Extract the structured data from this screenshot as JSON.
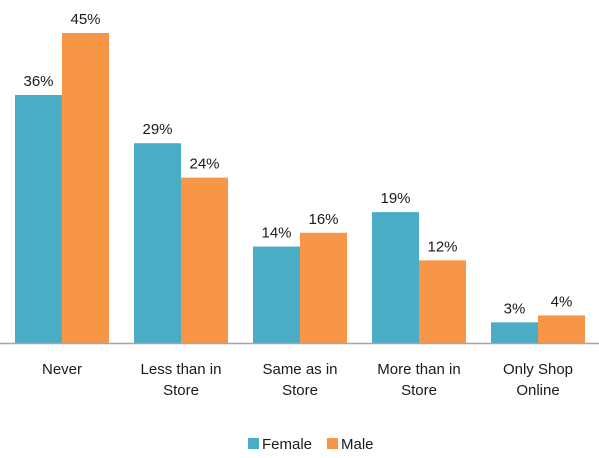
{
  "chart_data": {
    "type": "bar",
    "categories": [
      [
        "Never"
      ],
      [
        "Less than in",
        "Store"
      ],
      [
        "Same as in",
        "Store"
      ],
      [
        "More than in",
        "Store"
      ],
      [
        "Only Shop",
        "Online"
      ]
    ],
    "series": [
      {
        "name": "Female",
        "color": "#4bacc6",
        "values": [
          36,
          29,
          14,
          19,
          3
        ],
        "labels": [
          "36%",
          "29%",
          "14%",
          "19%",
          "3%"
        ]
      },
      {
        "name": "Male",
        "color": "#f79646",
        "values": [
          45,
          24,
          16,
          12,
          4
        ],
        "labels": [
          "45%",
          "24%",
          "16%",
          "12%",
          "4%"
        ]
      }
    ],
    "ylim": [
      0,
      45
    ],
    "grid": false,
    "legend_position": "bottom-center",
    "axis_color": "#a6a6a6"
  }
}
